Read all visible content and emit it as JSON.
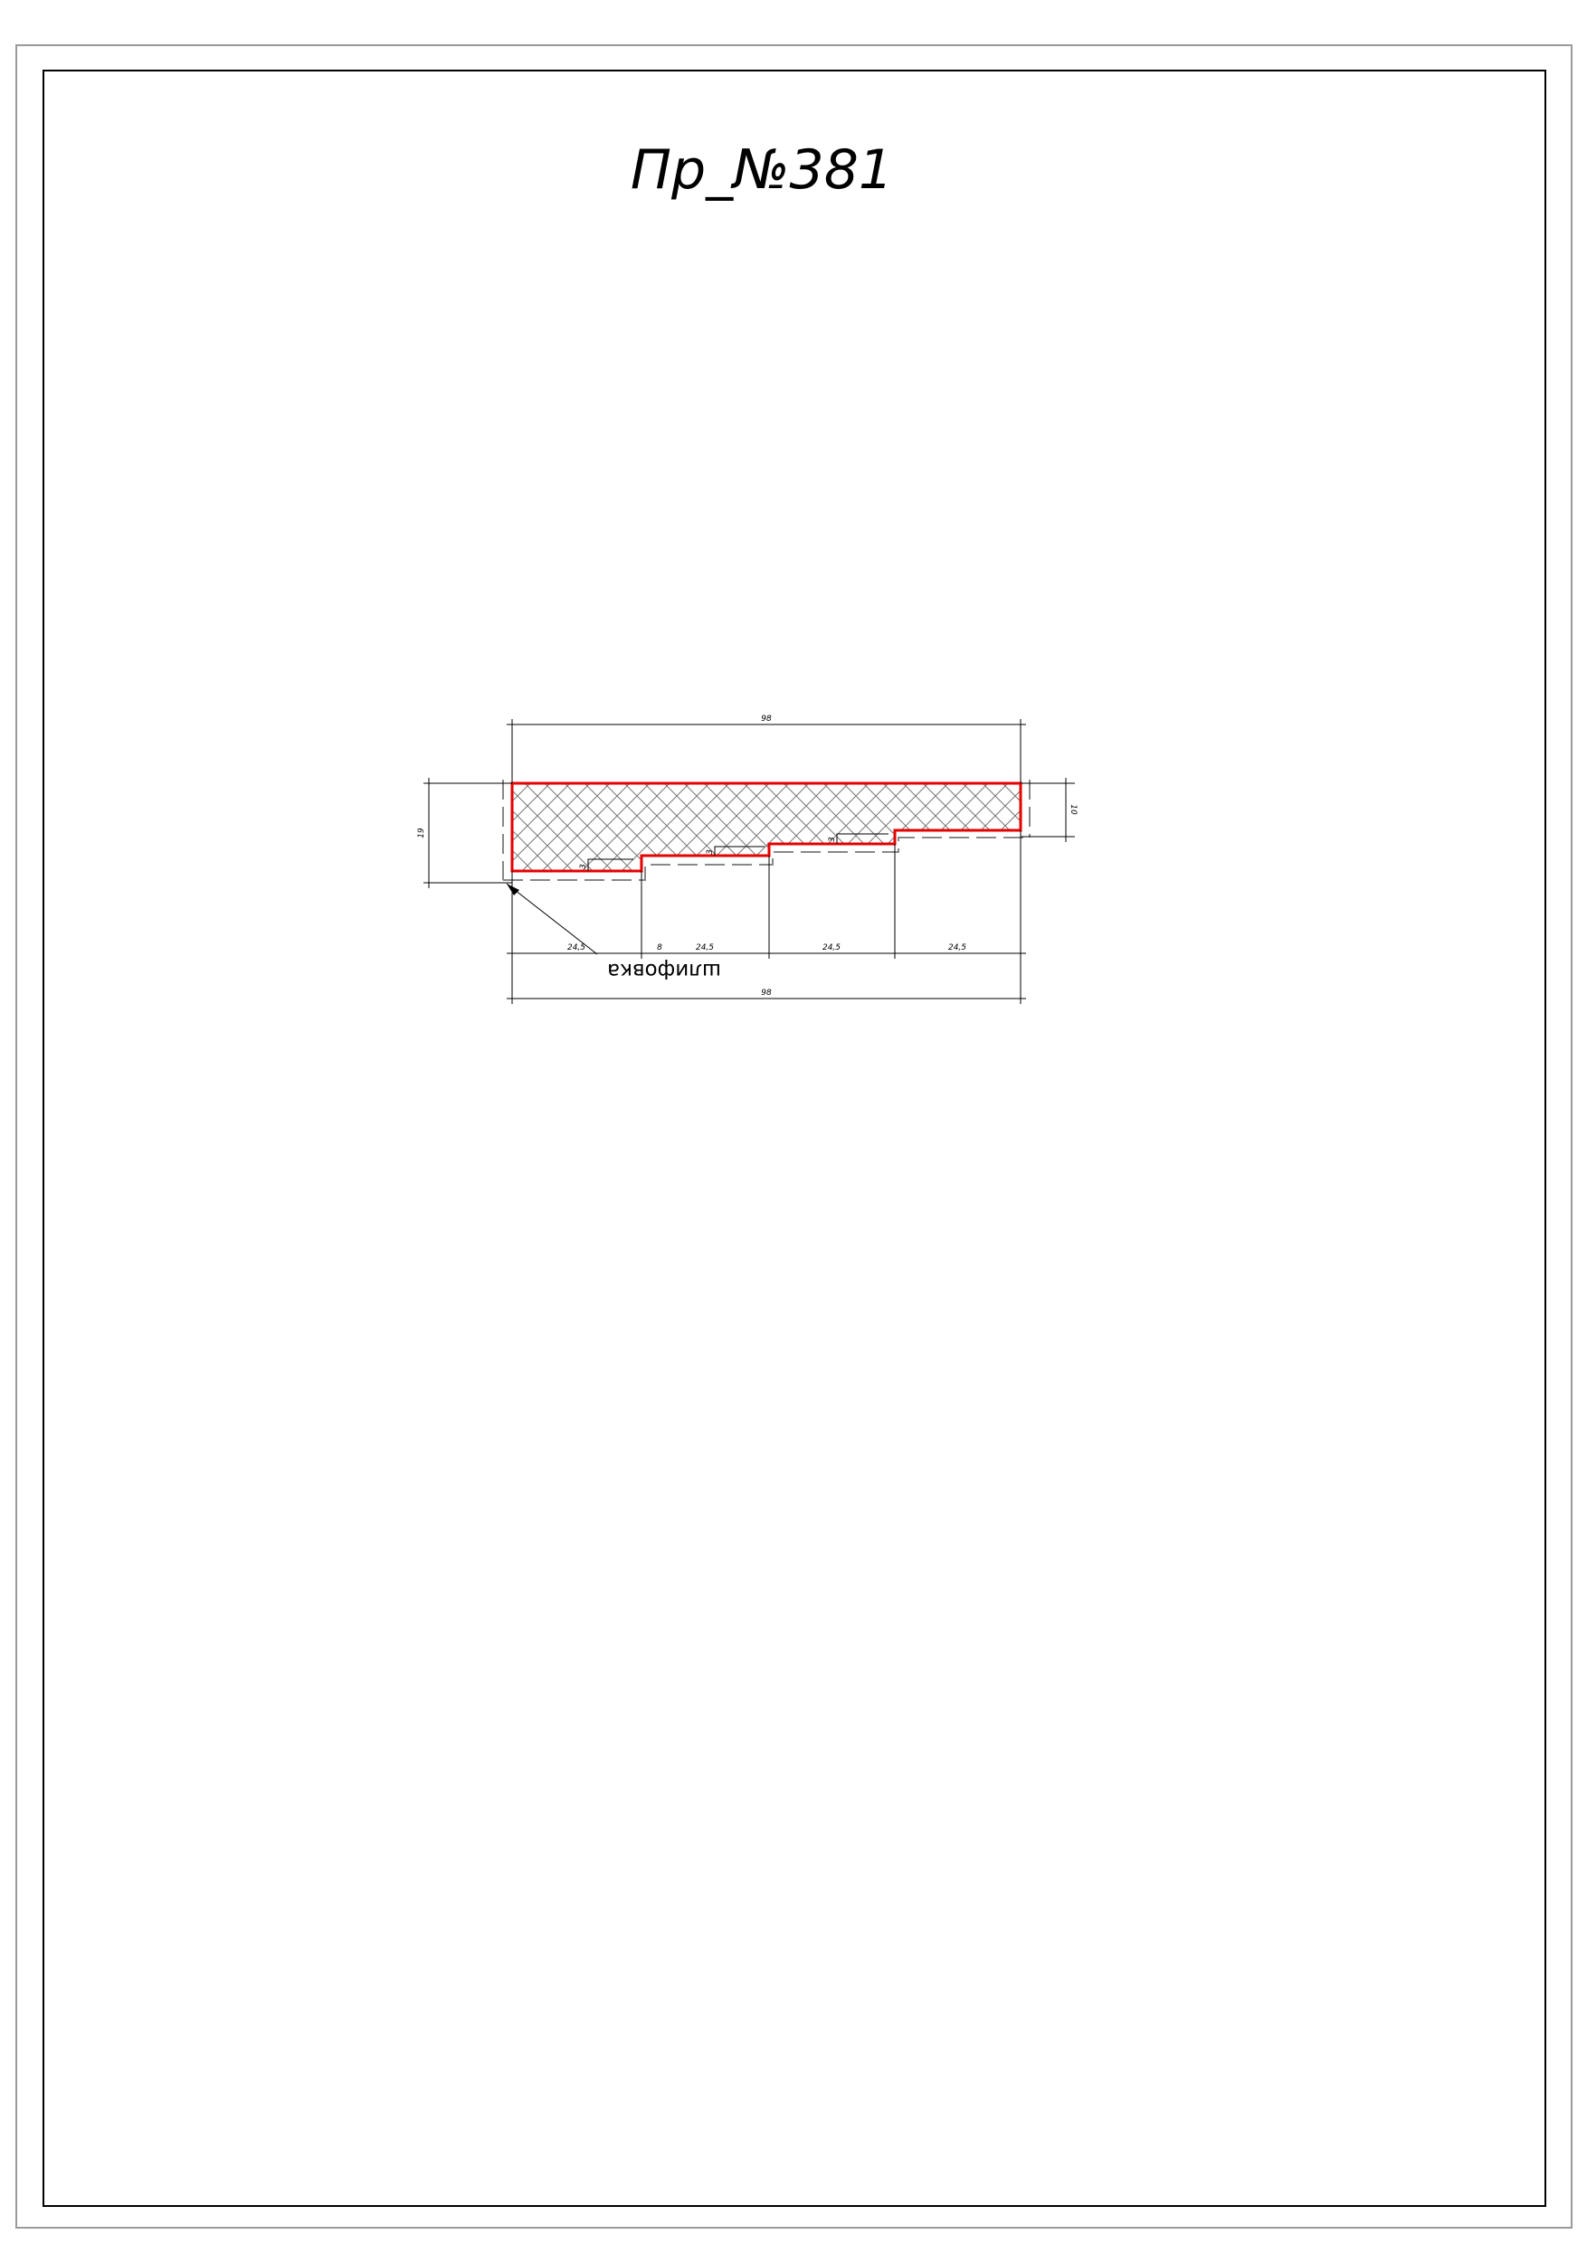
{
  "drawing": {
    "title": "Пр_№381",
    "callout_label": "шлифовка",
    "dimensions": {
      "overall_width_top": "98",
      "overall_width_bottom": "98",
      "height_left": "19",
      "height_right": "10",
      "segment_1": "24,5",
      "segment_2": "24,5",
      "segment_3": "24,5",
      "segment_4": "24,5",
      "step_1": "3",
      "step_2": "3",
      "step_3": "3",
      "label_8": "8"
    }
  },
  "colors": {
    "profile_outline": "#e60000",
    "lines": "#000000",
    "hatch": "#555555"
  }
}
